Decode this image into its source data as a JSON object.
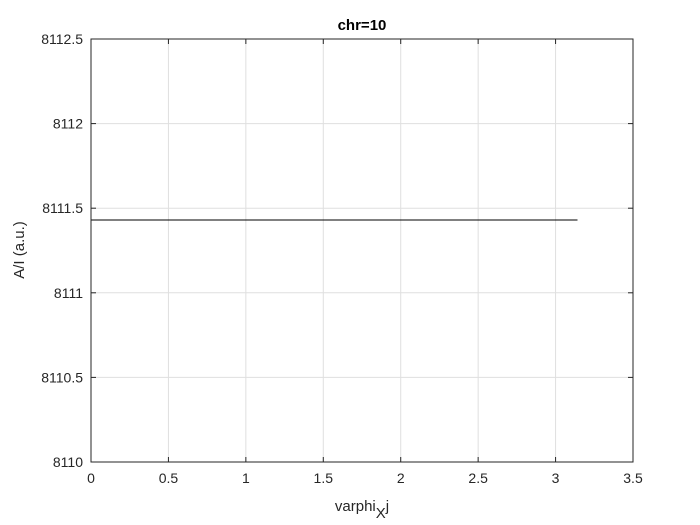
{
  "chart_data": {
    "type": "line",
    "title": "chr=10",
    "xlabel": {
      "main": "varphi",
      "subscript": "X",
      "suffix": "j"
    },
    "ylabel": "A/I (a.u.)",
    "xlim": [
      0,
      3.5
    ],
    "ylim": [
      8110,
      8112.5
    ],
    "xticks": [
      0,
      0.5,
      1,
      1.5,
      2,
      2.5,
      3,
      3.5
    ],
    "yticks": [
      8110,
      8110.5,
      8111,
      8111.5,
      8112,
      8112.5
    ],
    "xtick_labels": [
      "0",
      "0.5",
      "1",
      "1.5",
      "2",
      "2.5",
      "3",
      "3.5"
    ],
    "ytick_labels": [
      "8110",
      "8110.5",
      "8111",
      "8111.5",
      "8112",
      "8112.5"
    ],
    "grid": true,
    "series": [
      {
        "x": [
          0,
          3.1416
        ],
        "y": [
          8111.43,
          8111.43
        ],
        "color": "#000000"
      }
    ]
  }
}
